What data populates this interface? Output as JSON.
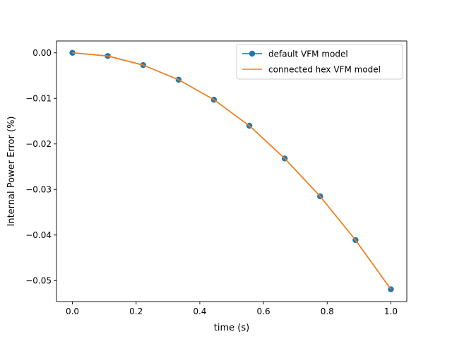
{
  "chart_data": {
    "type": "line",
    "xlabel": "time (s)",
    "ylabel": "Internal Power Error (%)",
    "xlim": [
      -0.05,
      1.05
    ],
    "ylim": [
      -0.0546,
      0.0026
    ],
    "xticks": [
      0.0,
      0.2,
      0.4,
      0.6,
      0.8,
      1.0
    ],
    "xtick_labels": [
      "0.0",
      "0.2",
      "0.4",
      "0.6",
      "0.8",
      "1.0"
    ],
    "yticks": [
      0.0,
      -0.01,
      -0.02,
      -0.03,
      -0.04,
      -0.05
    ],
    "ytick_labels": [
      "0.00",
      "−0.01",
      "−0.02",
      "−0.03",
      "−0.04",
      "−0.05"
    ],
    "legend_position": "top-right",
    "grid": false,
    "series": [
      {
        "name": "default VFM model",
        "color": "#1f77b4",
        "marker": "circle",
        "x": [
          0.0,
          0.1111,
          0.2222,
          0.3333,
          0.4444,
          0.5556,
          0.6667,
          0.7778,
          0.8889,
          1.0
        ],
        "y": [
          0.0,
          -0.0007,
          -0.0027,
          -0.0059,
          -0.0103,
          -0.016,
          -0.0232,
          -0.0315,
          -0.0411,
          -0.0519
        ]
      },
      {
        "name": "connected hex VFM model",
        "color": "#ff7f0e",
        "marker": "none",
        "x": [
          0.0,
          0.1111,
          0.2222,
          0.3333,
          0.4444,
          0.5556,
          0.6667,
          0.7778,
          0.8889,
          1.0
        ],
        "y": [
          0.0,
          -0.0007,
          -0.0027,
          -0.0059,
          -0.0103,
          -0.016,
          -0.0232,
          -0.0315,
          -0.0411,
          -0.0519
        ]
      }
    ]
  }
}
